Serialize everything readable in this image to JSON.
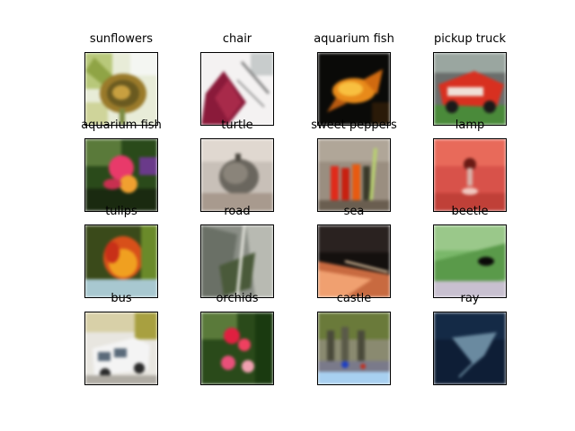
{
  "images": [
    {
      "label": "sunflowers",
      "scene": "sunflower"
    },
    {
      "label": "chair",
      "scene": "chair"
    },
    {
      "label": "aquarium fish",
      "scene": "fish1"
    },
    {
      "label": "pickup truck",
      "scene": "truck"
    },
    {
      "label": "aquarium fish",
      "scene": "fish2"
    },
    {
      "label": "turtle",
      "scene": "turtle"
    },
    {
      "label": "sweet peppers",
      "scene": "peppers"
    },
    {
      "label": "lamp",
      "scene": "lamp"
    },
    {
      "label": "tulips",
      "scene": "tulips"
    },
    {
      "label": "road",
      "scene": "road"
    },
    {
      "label": "sea",
      "scene": "sea"
    },
    {
      "label": "beetle",
      "scene": "beetle"
    },
    {
      "label": "bus",
      "scene": "bus"
    },
    {
      "label": "orchids",
      "scene": "orchids"
    },
    {
      "label": "castle",
      "scene": "castle"
    },
    {
      "label": "ray",
      "scene": "ray"
    }
  ]
}
